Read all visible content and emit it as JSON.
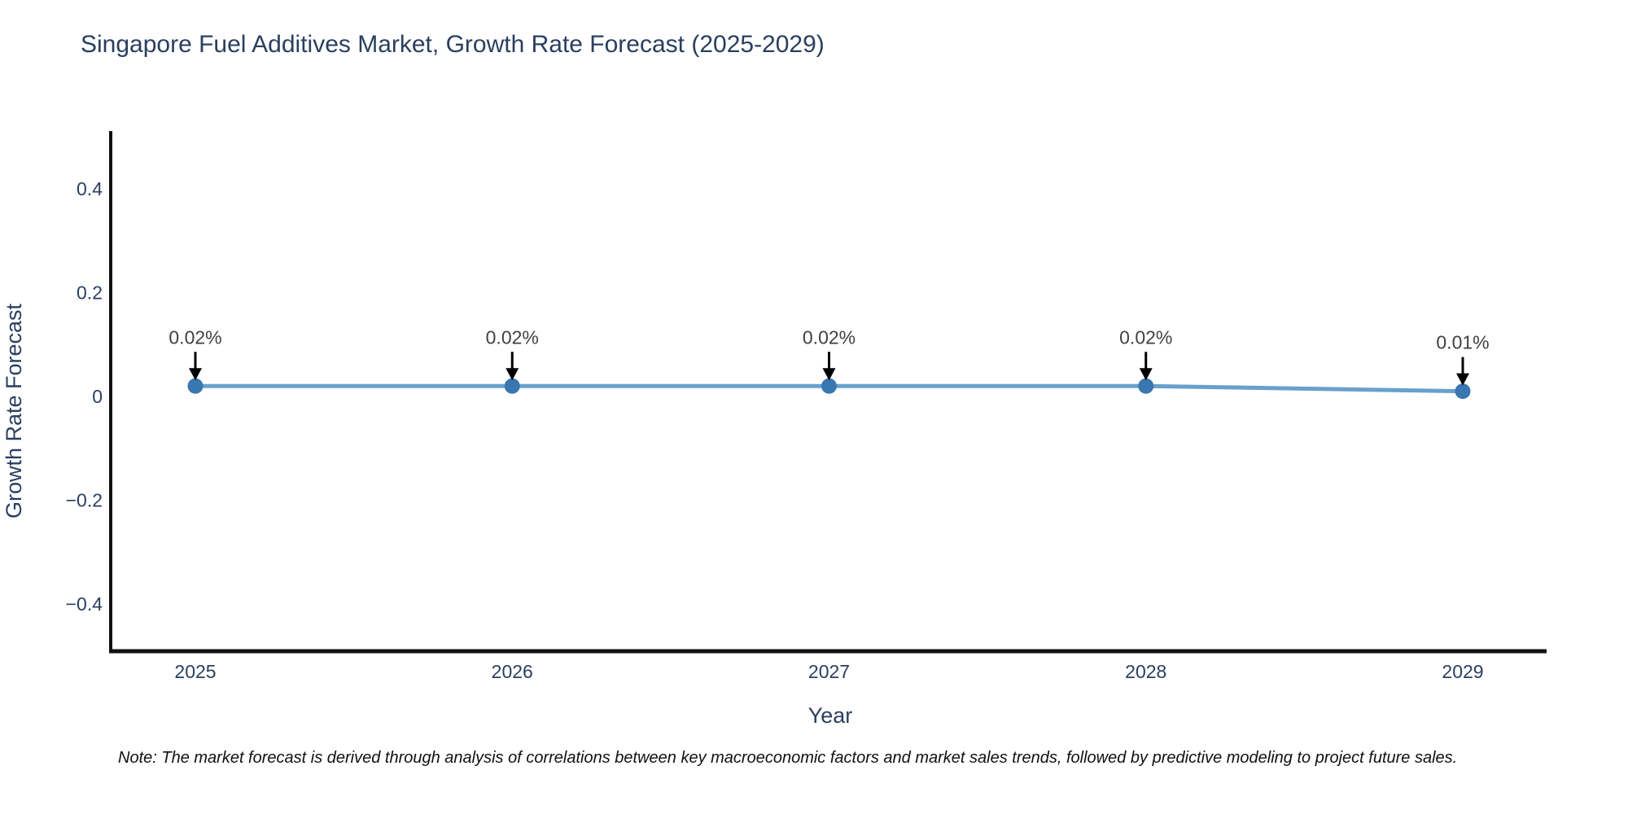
{
  "chart_data": {
    "type": "line",
    "title": "Singapore Fuel Additives Market, Growth Rate Forecast (2025-2029)",
    "xlabel": "Year",
    "ylabel": "Growth Rate Forecast",
    "x": [
      2025,
      2026,
      2027,
      2028,
      2029
    ],
    "xtick_labels": [
      "2025",
      "2026",
      "2027",
      "2028",
      "2029"
    ],
    "series": [
      {
        "name": "Growth Rate Forecast",
        "values": [
          0.02,
          0.02,
          0.02,
          0.02,
          0.01
        ],
        "point_labels": [
          "0.02%",
          "0.02%",
          "0.02%",
          "0.02%",
          "0.01%"
        ]
      }
    ],
    "yticks": [
      0.4,
      0.2,
      0,
      -0.2,
      -0.4
    ],
    "ytick_labels": [
      "0.4",
      "0.2",
      "0",
      "−0.2",
      "−0.4"
    ],
    "ylim": [
      -0.49,
      0.52
    ],
    "xlim": [
      2025,
      2029
    ],
    "grid": false,
    "legend": false,
    "annotations_have_arrows": true,
    "colors": {
      "line": "#67a1cc",
      "marker": "#3a76b0",
      "axis_line": "#111111",
      "font": "#2a3f5f",
      "annotation_text": "#404040",
      "arrow": "#000000",
      "note_text": "#111111",
      "background": "#ffffff"
    }
  },
  "note": "Note: The market forecast is derived through analysis of correlations between key macroeconomic factors and market sales trends, followed by predictive modeling to project future sales."
}
